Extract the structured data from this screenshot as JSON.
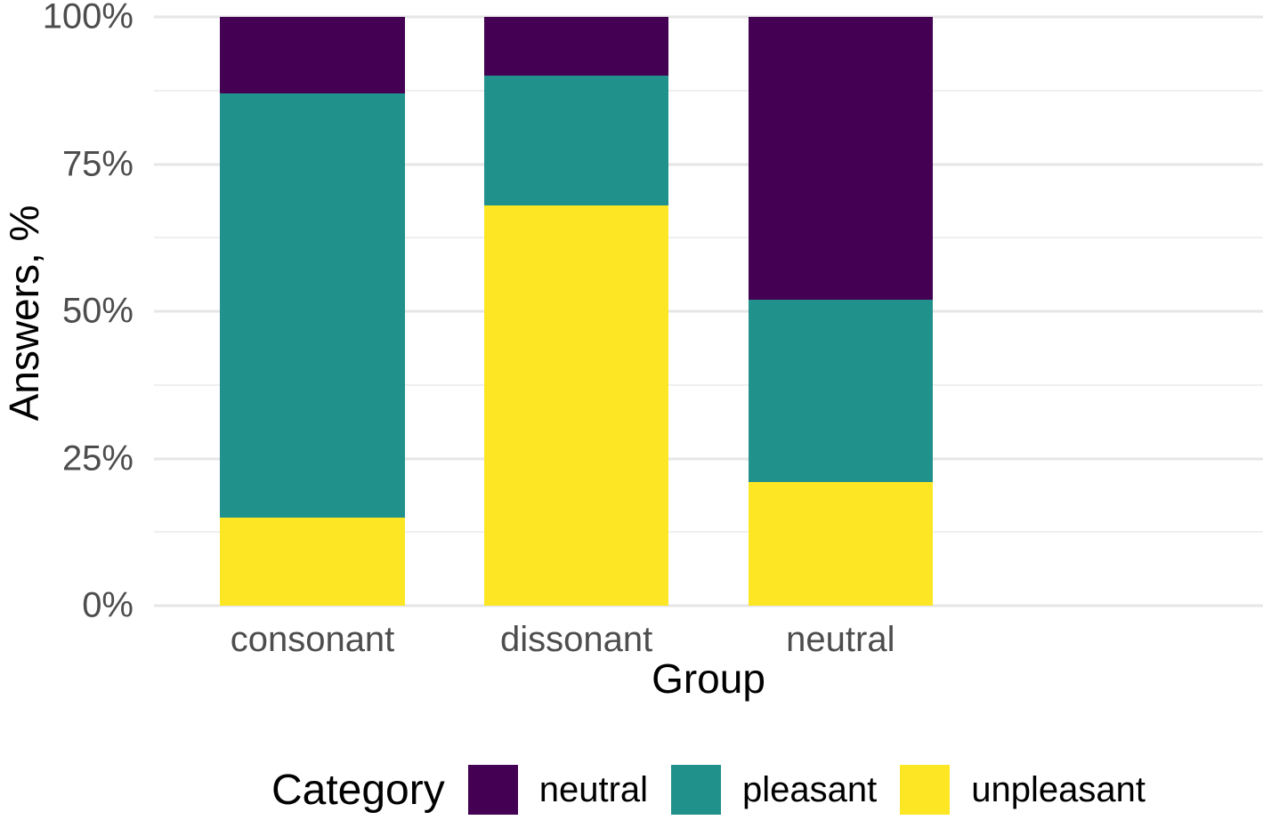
{
  "chart_data": {
    "type": "bar",
    "stacked": true,
    "percent": true,
    "title": "",
    "xlabel": "Group",
    "ylabel": "Answers, %",
    "categories": [
      "consonant",
      "dissonant",
      "neutral"
    ],
    "series": [
      {
        "name": "unpleasant",
        "color": "#fde725",
        "values": [
          15,
          68,
          21
        ]
      },
      {
        "name": "pleasant",
        "color": "#21918c",
        "values": [
          72,
          22,
          31
        ]
      },
      {
        "name": "neutral",
        "color": "#440154",
        "values": [
          13,
          10,
          48
        ]
      }
    ],
    "stack_order_bottom_to_top": [
      "unpleasant",
      "pleasant",
      "neutral"
    ],
    "ylim": [
      0,
      100
    ],
    "y_ticks": [
      {
        "value": 0,
        "label": "0%"
      },
      {
        "value": 25,
        "label": "25%"
      },
      {
        "value": 50,
        "label": "50%"
      },
      {
        "value": 75,
        "label": "75%"
      },
      {
        "value": 100,
        "label": "100%"
      }
    ],
    "y_minor_ticks": [
      12.5,
      37.5,
      62.5,
      87.5
    ],
    "grid": "horizontal",
    "legend": {
      "title": "Category",
      "position": "bottom",
      "entries": [
        {
          "label": "neutral",
          "color": "#440154"
        },
        {
          "label": "pleasant",
          "color": "#21918c"
        },
        {
          "label": "unpleasant",
          "color": "#fde725"
        }
      ]
    },
    "colors": {
      "background": "#ffffff",
      "gridline_major": "#e6e6e6",
      "gridline_minor": "#efefef",
      "tick_label": "#4d4d4d",
      "axis_title": "#000000"
    }
  }
}
